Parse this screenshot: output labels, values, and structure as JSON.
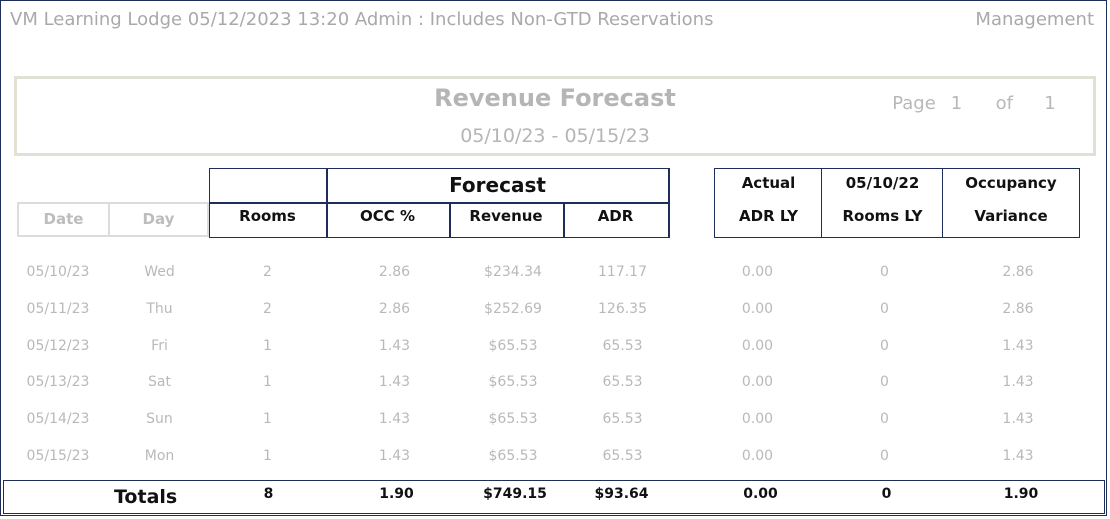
{
  "header": {
    "left": "VM Learning Lodge 05/12/2023 13:20  Admin : Includes Non-GTD Reservations",
    "right": "Management"
  },
  "report": {
    "title": "Revenue Forecast",
    "date_range": "05/10/23 - 05/15/23",
    "page_label": "Page",
    "page_current": "1",
    "page_of": "of",
    "page_total": "1"
  },
  "columns": {
    "date": "Date",
    "day": "Day",
    "forecast_group": "Forecast",
    "rooms": "Rooms",
    "occ": "OCC %",
    "revenue": "Revenue",
    "adr": "ADR",
    "actual_top": "Actual",
    "actual_bottom": "ADR LY",
    "roomsly_top": "05/10/22",
    "roomsly_bottom": "Rooms LY",
    "occvar_top": "Occupancy",
    "occvar_bottom": "Variance"
  },
  "rows": [
    {
      "date": "05/10/23",
      "day": "Wed",
      "rooms": "2",
      "occ": "2.86",
      "revenue": "$234.34",
      "adr": "117.17",
      "adr_ly": "0.00",
      "rooms_ly": "0",
      "occ_var": "2.86"
    },
    {
      "date": "05/11/23",
      "day": "Thu",
      "rooms": "2",
      "occ": "2.86",
      "revenue": "$252.69",
      "adr": "126.35",
      "adr_ly": "0.00",
      "rooms_ly": "0",
      "occ_var": "2.86"
    },
    {
      "date": "05/12/23",
      "day": "Fri",
      "rooms": "1",
      "occ": "1.43",
      "revenue": "$65.53",
      "adr": "65.53",
      "adr_ly": "0.00",
      "rooms_ly": "0",
      "occ_var": "1.43"
    },
    {
      "date": "05/13/23",
      "day": "Sat",
      "rooms": "1",
      "occ": "1.43",
      "revenue": "$65.53",
      "adr": "65.53",
      "adr_ly": "0.00",
      "rooms_ly": "0",
      "occ_var": "1.43"
    },
    {
      "date": "05/14/23",
      "day": "Sun",
      "rooms": "1",
      "occ": "1.43",
      "revenue": "$65.53",
      "adr": "65.53",
      "adr_ly": "0.00",
      "rooms_ly": "0",
      "occ_var": "1.43"
    },
    {
      "date": "05/15/23",
      "day": "Mon",
      "rooms": "1",
      "occ": "1.43",
      "revenue": "$65.53",
      "adr": "65.53",
      "adr_ly": "0.00",
      "rooms_ly": "0",
      "occ_var": "1.43"
    }
  ],
  "totals": {
    "label": "Totals",
    "rooms": "8",
    "occ": "1.90",
    "revenue": "$749.15",
    "adr": "$93.64",
    "adr_ly": "0.00",
    "rooms_ly": "0",
    "occ_var": "1.90"
  }
}
